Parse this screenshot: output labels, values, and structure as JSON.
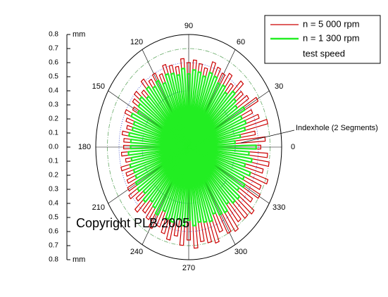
{
  "chart_data": {
    "type": "polar",
    "theta": [
      0,
      5,
      10,
      15,
      20,
      25,
      30,
      35,
      40,
      45,
      50,
      55,
      60,
      65,
      70,
      75,
      80,
      85,
      90,
      95,
      100,
      105,
      110,
      115,
      120,
      125,
      130,
      135,
      140,
      145,
      150,
      155,
      160,
      165,
      170,
      175,
      180,
      185,
      190,
      195,
      200,
      205,
      210,
      215,
      220,
      225,
      230,
      235,
      240,
      245,
      250,
      255,
      260,
      265,
      270,
      275,
      280,
      285,
      290,
      295,
      300,
      305,
      310,
      315,
      320,
      325,
      330,
      335,
      340,
      345,
      350,
      355
    ],
    "series": [
      {
        "name": "n = 5 000 rpm",
        "color": "#cc0000",
        "values": [
          0.62,
          0.66,
          0.58,
          0.7,
          0.64,
          0.6,
          0.68,
          0.62,
          0.6,
          0.65,
          0.58,
          0.63,
          0.6,
          0.62,
          0.64,
          0.58,
          0.6,
          0.62,
          0.6,
          0.63,
          0.58,
          0.6,
          0.62,
          0.57,
          0.6,
          0.58,
          0.62,
          0.56,
          0.6,
          0.58,
          0.55,
          0.6,
          0.57,
          0.55,
          0.58,
          0.56,
          0.56,
          0.58,
          0.55,
          0.6,
          0.57,
          0.58,
          0.6,
          0.62,
          0.58,
          0.64,
          0.6,
          0.62,
          0.66,
          0.62,
          0.65,
          0.68,
          0.64,
          0.7,
          0.66,
          0.72,
          0.68,
          0.7,
          0.72,
          0.66,
          0.7,
          0.72,
          0.68,
          0.7,
          0.72,
          0.66,
          0.7,
          0.68,
          0.72,
          0.66,
          0.7,
          0.68
        ]
      },
      {
        "name": "n = 1 300 rpm",
        "color": "#22ee22",
        "values": [
          0.58,
          0.4,
          0.45,
          0.5,
          0.52,
          0.5,
          0.55,
          0.5,
          0.52,
          0.55,
          0.5,
          0.53,
          0.52,
          0.55,
          0.56,
          0.52,
          0.54,
          0.55,
          0.52,
          0.56,
          0.52,
          0.54,
          0.55,
          0.5,
          0.54,
          0.52,
          0.55,
          0.5,
          0.54,
          0.52,
          0.5,
          0.54,
          0.5,
          0.5,
          0.52,
          0.5,
          0.5,
          0.52,
          0.5,
          0.52,
          0.5,
          0.5,
          0.52,
          0.53,
          0.5,
          0.54,
          0.5,
          0.52,
          0.55,
          0.5,
          0.54,
          0.55,
          0.52,
          0.56,
          0.52,
          0.56,
          0.54,
          0.55,
          0.56,
          0.52,
          0.55,
          0.56,
          0.52,
          0.55,
          0.56,
          0.52,
          0.55,
          0.52,
          0.56,
          0.5,
          0.55,
          0.52
        ]
      }
    ],
    "legend_note": "test speed",
    "rlim": [
      0,
      0.8
    ],
    "rticks": [
      {
        "value": 0,
        "label": "0.0"
      },
      0.1,
      0.2,
      0.3,
      0.4,
      0.5,
      0.6,
      0.7,
      0.8
    ],
    "r_unit": "mm",
    "thetaticks": [
      0,
      30,
      60,
      90,
      120,
      150,
      180,
      210,
      240,
      270,
      300,
      330
    ],
    "annotation": "Indexhole (2 Segments)",
    "copyright": "Copyright PLB 2005"
  }
}
